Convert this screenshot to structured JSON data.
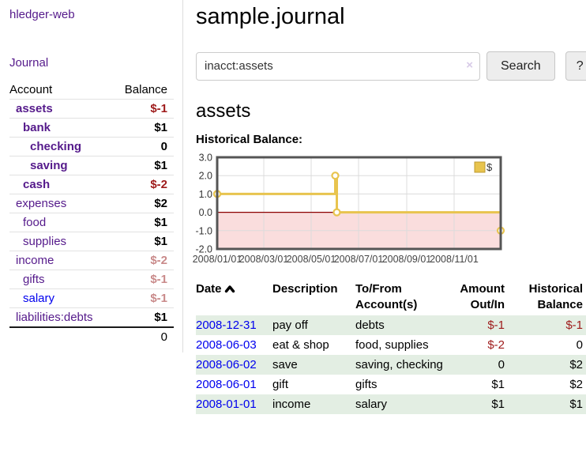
{
  "app": {
    "brand": "hledger-web",
    "nav_journal": "Journal"
  },
  "colors": {
    "link_purple": "#551a8b",
    "link_blue": "#0000ee",
    "negative_strong": "#9e1a1a",
    "negative_muted": "#c98a8a",
    "row_stripe_green": "#e3eee3",
    "chart_gold": "#e8c44e"
  },
  "sidebar": {
    "headers": [
      "Account",
      "Balance"
    ],
    "rows": [
      {
        "name": "assets",
        "depth": 1,
        "bold": true,
        "balance": "$-1",
        "neg": "strong"
      },
      {
        "name": "bank",
        "depth": 2,
        "bold": true,
        "balance": "$1"
      },
      {
        "name": "checking",
        "depth": 3,
        "bold": true,
        "balance": "0"
      },
      {
        "name": "saving",
        "depth": 3,
        "bold": true,
        "balance": "$1"
      },
      {
        "name": "cash",
        "depth": 2,
        "bold": true,
        "balance": "$-2",
        "neg": "strong"
      },
      {
        "name": "expenses",
        "depth": 1,
        "bold": false,
        "balance": "$2"
      },
      {
        "name": "food",
        "depth": 2,
        "bold": false,
        "balance": "$1"
      },
      {
        "name": "supplies",
        "depth": 2,
        "bold": false,
        "balance": "$1"
      },
      {
        "name": "income",
        "depth": 1,
        "bold": false,
        "balance": "$-2",
        "neg": "muted"
      },
      {
        "name": "gifts",
        "depth": 2,
        "bold": false,
        "balance": "$-1",
        "neg": "muted"
      },
      {
        "name": "salary",
        "depth": 2,
        "bold": false,
        "balance": "$-1",
        "neg": "muted",
        "blue": true
      },
      {
        "name": "liabilities:debts",
        "depth": 1,
        "bold": false,
        "balance": "$1"
      }
    ],
    "total": "0"
  },
  "header": {
    "title": "sample.journal"
  },
  "search": {
    "value": "inacct:assets",
    "clear_icon": "×",
    "button": "Search",
    "help": "?"
  },
  "register": {
    "heading": "assets",
    "chart_label": "Historical Balance:"
  },
  "chart_data": {
    "type": "line",
    "step": true,
    "title": "Historical Balance",
    "xlabel": "",
    "ylabel": "",
    "ylim": [
      -2,
      3
    ],
    "y_ticks": [
      3.0,
      2.0,
      1.0,
      0.0,
      -1.0,
      -2.0
    ],
    "x_range_days": [
      0,
      365
    ],
    "x_ticks": [
      {
        "label": "2008/01/01",
        "day": 0
      },
      {
        "label": "2008/03/01",
        "day": 60
      },
      {
        "label": "2008/05/01",
        "day": 121
      },
      {
        "label": "2008/07/01",
        "day": 182
      },
      {
        "label": "2008/09/01",
        "day": 244
      },
      {
        "label": "2008/11/01",
        "day": 305
      }
    ],
    "legend_position": "top-right",
    "grid": true,
    "negative_region_fill": "#fadddd",
    "zero_line_color": "#8b0000",
    "series": [
      {
        "name": "$",
        "color": "#e8c44e",
        "points": [
          {
            "date": "2008-01-01",
            "day": 0,
            "value": 1
          },
          {
            "date": "2008-06-01",
            "day": 152,
            "value": 2
          },
          {
            "date": "2008-06-03",
            "day": 154,
            "value": 0
          },
          {
            "date": "2008-12-31",
            "day": 365,
            "value": -1
          }
        ]
      }
    ]
  },
  "table": {
    "headers": [
      "Date",
      "Description",
      "To/From Account(s)",
      "Amount Out/In",
      "Historical Balance"
    ],
    "rows": [
      {
        "date": "2008-12-31",
        "description": "pay off",
        "accounts": "debts",
        "amount": "$-1",
        "balance": "$-1"
      },
      {
        "date": "2008-06-03",
        "description": "eat & shop",
        "accounts": "food, supplies",
        "amount": "$-2",
        "balance": "0"
      },
      {
        "date": "2008-06-02",
        "description": "save",
        "accounts": "saving, checking",
        "amount": "0",
        "balance": "$2"
      },
      {
        "date": "2008-06-01",
        "description": "gift",
        "accounts": "gifts",
        "amount": "$1",
        "balance": "$2"
      },
      {
        "date": "2008-01-01",
        "description": "income",
        "accounts": "salary",
        "amount": "$1",
        "balance": "$1"
      }
    ]
  }
}
